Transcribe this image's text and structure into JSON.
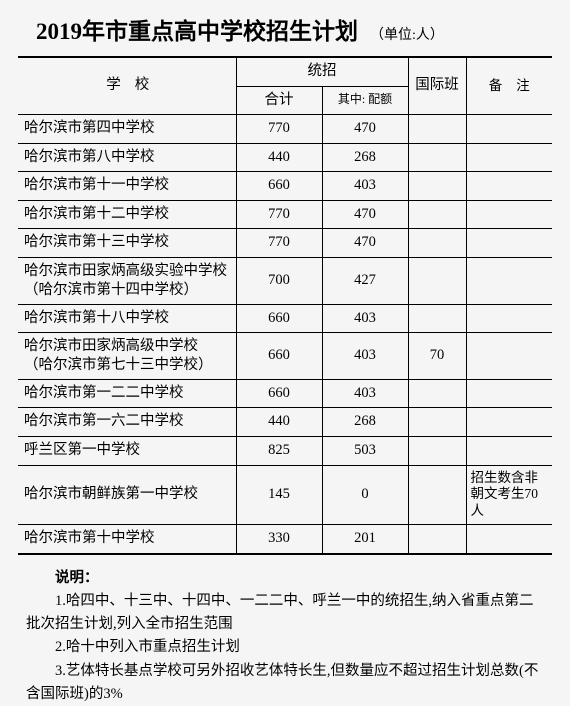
{
  "title": "2019年市重点高中学校招生计划",
  "title_unit": "（单位:人）",
  "header": {
    "school": "学校",
    "tz_group": "统招",
    "tz_total": "合计",
    "tz_quota": "其中:\n配额",
    "intl": "国际班",
    "note": "备注"
  },
  "rows": [
    {
      "school": "哈尔滨市第四中学校",
      "total": "770",
      "quota": "470",
      "intl": "",
      "note": ""
    },
    {
      "school": "哈尔滨市第八中学校",
      "total": "440",
      "quota": "268",
      "intl": "",
      "note": ""
    },
    {
      "school": "哈尔滨市第十一中学校",
      "total": "660",
      "quota": "403",
      "intl": "",
      "note": ""
    },
    {
      "school": "哈尔滨市第十二中学校",
      "total": "770",
      "quota": "470",
      "intl": "",
      "note": ""
    },
    {
      "school": "哈尔滨市第十三中学校",
      "total": "770",
      "quota": "470",
      "intl": "",
      "note": ""
    },
    {
      "school": "哈尔滨市田家炳高级实验中学校\n（哈尔滨市第十四中学校）",
      "total": "700",
      "quota": "427",
      "intl": "",
      "note": ""
    },
    {
      "school": "哈尔滨市第十八中学校",
      "total": "660",
      "quota": "403",
      "intl": "",
      "note": ""
    },
    {
      "school": "哈尔滨市田家炳高级中学校\n（哈尔滨市第七十三中学校）",
      "total": "660",
      "quota": "403",
      "intl": "70",
      "note": ""
    },
    {
      "school": "哈尔滨市第一二二中学校",
      "total": "660",
      "quota": "403",
      "intl": "",
      "note": ""
    },
    {
      "school": "哈尔滨市第一六二中学校",
      "total": "440",
      "quota": "268",
      "intl": "",
      "note": ""
    },
    {
      "school": "呼兰区第一中学校",
      "total": "825",
      "quota": "503",
      "intl": "",
      "note": ""
    },
    {
      "school": "哈尔滨市朝鲜族第一中学校",
      "total": "145",
      "quota": "0",
      "intl": "",
      "note": "招生数含非朝文考生70人"
    },
    {
      "school": "哈尔滨市第十中学校",
      "total": "330",
      "quota": "201",
      "intl": "",
      "note": ""
    }
  ],
  "notes_title": "说明：",
  "notes": [
    "1.哈四中、十三中、十四中、一二二中、呼兰一中的统招生,纳入省重点第二批次招生计划,列入全市招生范围",
    "2.哈十中列入市重点招生计划",
    "3.艺体特长基点学校可另外招收艺体特长生,但数量应不超过招生计划总数(不含国际班)的3%"
  ],
  "style": {
    "background_color": "#f5f5f5",
    "text_color": "#000000",
    "border_color": "#000000",
    "title_fontsize": 23,
    "body_fontsize": 14.5,
    "quota_head_fontsize": 12,
    "note_cell_fontsize": 13.5,
    "font_family": "SimSun",
    "col_widths": {
      "school": 218,
      "total": 50,
      "quota": 50,
      "intl": 58
    }
  }
}
